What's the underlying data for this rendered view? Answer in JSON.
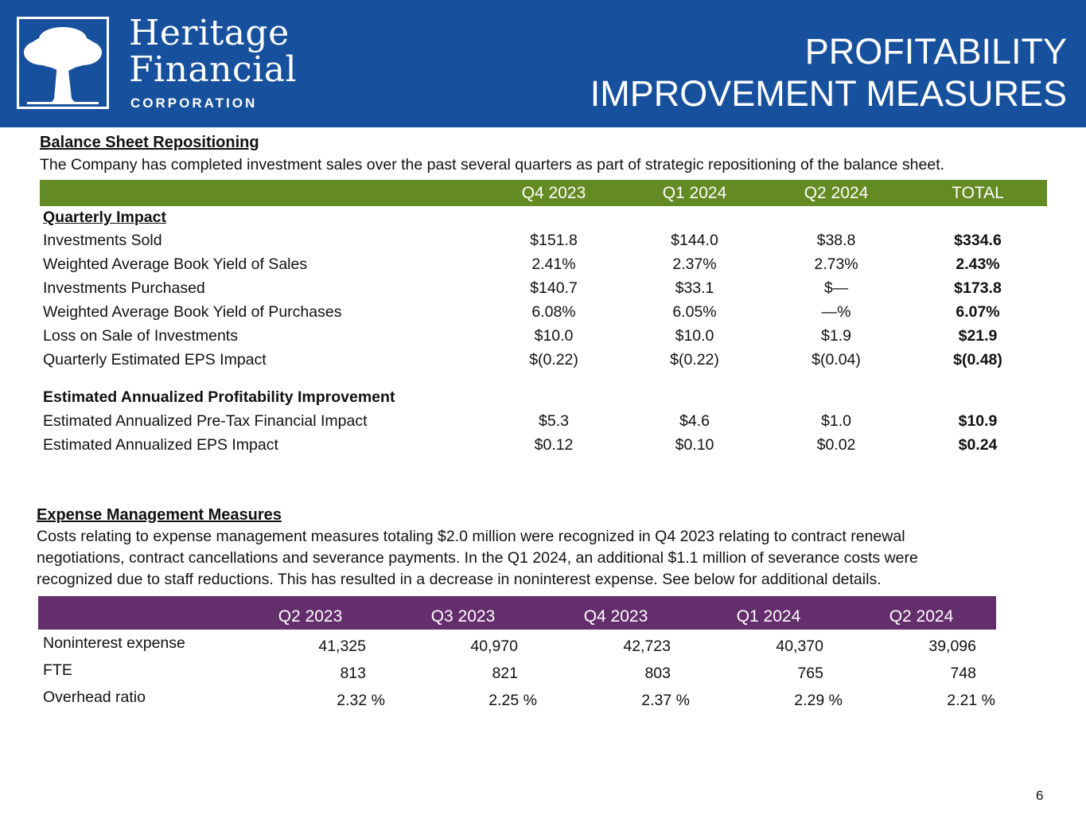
{
  "logo": {
    "line1": "Heritage",
    "line2": "Financial",
    "line3": "CORPORATION"
  },
  "title": {
    "line1": "PROFITABILITY",
    "line2": "IMPROVEMENT MEASURES"
  },
  "balance": {
    "heading": "Balance Sheet Repositioning",
    "desc": "The Company has completed investment sales over the past several quarters as part of strategic repositioning of the balance sheet.",
    "columns": [
      "Q4 2023",
      "Q1 2024",
      "Q2 2024",
      "TOTAL"
    ],
    "quarterly_heading": "Quarterly Impact",
    "rows": [
      {
        "label": "Investments Sold",
        "values": [
          "$151.8",
          "$144.0",
          "$38.8",
          "$334.6"
        ]
      },
      {
        "label": "Weighted Average Book Yield of Sales",
        "values": [
          "2.41%",
          "2.37%",
          "2.73%",
          "2.43%"
        ]
      },
      {
        "label": "Investments Purchased",
        "values": [
          "$140.7",
          "$33.1",
          "$—",
          "$173.8"
        ]
      },
      {
        "label": "Weighted Average Book Yield of Purchases",
        "values": [
          "6.08%",
          "6.05%",
          "—%",
          "6.07%"
        ]
      },
      {
        "label": "Loss on Sale of Investments",
        "values": [
          "$10.0",
          "$10.0",
          "$1.9",
          "$21.9"
        ]
      },
      {
        "label": "Quarterly Estimated EPS Impact",
        "values": [
          "$(0.22)",
          "$(0.22)",
          "$(0.04)",
          "$(0.48)"
        ]
      }
    ],
    "annualized_heading": "Estimated Annualized Profitability Improvement",
    "annual_rows": [
      {
        "label": "Estimated Annualized Pre-Tax Financial Impact",
        "values": [
          "$5.3",
          "$4.6",
          "$1.0",
          "$10.9"
        ]
      },
      {
        "label": "Estimated Annualized EPS Impact",
        "values": [
          "$0.12",
          "$0.10",
          "$0.02",
          "$0.24"
        ]
      }
    ]
  },
  "expense": {
    "heading": "Expense Management Measures",
    "desc_lines": [
      "Costs relating to expense management measures totaling $2.0 million were recognized in Q4 2023 relating to contract renewal",
      "negotiations, contract cancellations and severance payments. In the Q1 2024, an additional $1.1 million of severance costs were",
      "recognized due to staff reductions. This has resulted in a decrease in noninterest expense. See below for additional details."
    ],
    "columns": [
      "Q2 2023",
      "Q3 2023",
      "Q4 2023",
      "Q1 2024",
      "Q2 2024"
    ],
    "rows": [
      {
        "label": "Noninterest expense",
        "values": [
          "41,325",
          "40,970",
          "42,723",
          "40,370",
          "39,096"
        ]
      },
      {
        "label": "FTE",
        "values": [
          "813",
          "821",
          "803",
          "765",
          "748"
        ]
      },
      {
        "label": "Overhead ratio",
        "values": [
          "2.32 %",
          "2.25 %",
          "2.37 %",
          "2.29 %",
          "2.21 %"
        ]
      }
    ]
  },
  "page_number": "6"
}
